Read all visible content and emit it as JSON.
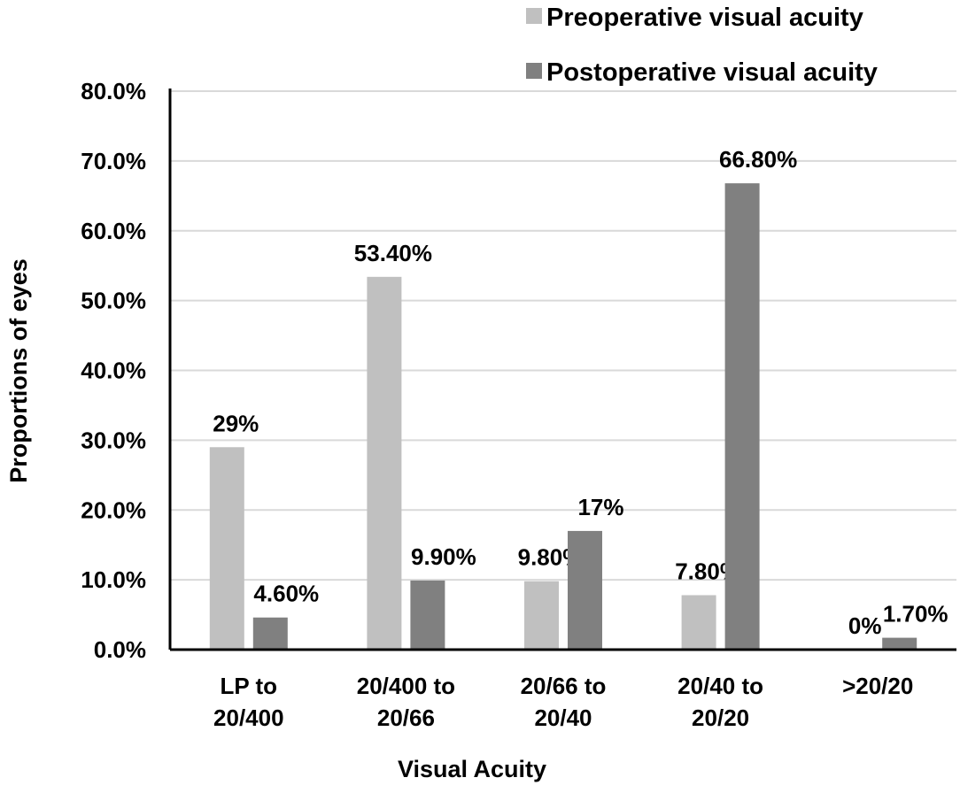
{
  "chart_data": {
    "type": "bar",
    "title": "",
    "xlabel": "Visual Acuity",
    "ylabel": "Proportions of eyes",
    "ylim": [
      0,
      80
    ],
    "yticks": [
      "0.0%",
      "10.0%",
      "20.0%",
      "30.0%",
      "40.0%",
      "50.0%",
      "60.0%",
      "70.0%",
      "80.0%"
    ],
    "grid": true,
    "legend_position": "top-right",
    "categories": [
      [
        "LP to",
        "20/400"
      ],
      [
        "20/400  to",
        "20/66"
      ],
      [
        "20/66 to",
        "20/40"
      ],
      [
        "20/40 to",
        "20/20"
      ],
      [
        ">20/20",
        ""
      ]
    ],
    "series": [
      {
        "name": "Preoperative visual acuity",
        "color": "#c0c0c0",
        "values": [
          29,
          53.4,
          9.8,
          7.8,
          0
        ],
        "labels": [
          "29%",
          "53.40%",
          "9.80%",
          "7.80%",
          "0%"
        ]
      },
      {
        "name": "Postoperative visual acuity",
        "color": "#808080",
        "values": [
          4.6,
          9.9,
          17,
          66.8,
          1.7
        ],
        "labels": [
          "4.60%",
          "9.90%",
          "17%",
          "66.80%",
          "1.70%"
        ]
      }
    ]
  }
}
